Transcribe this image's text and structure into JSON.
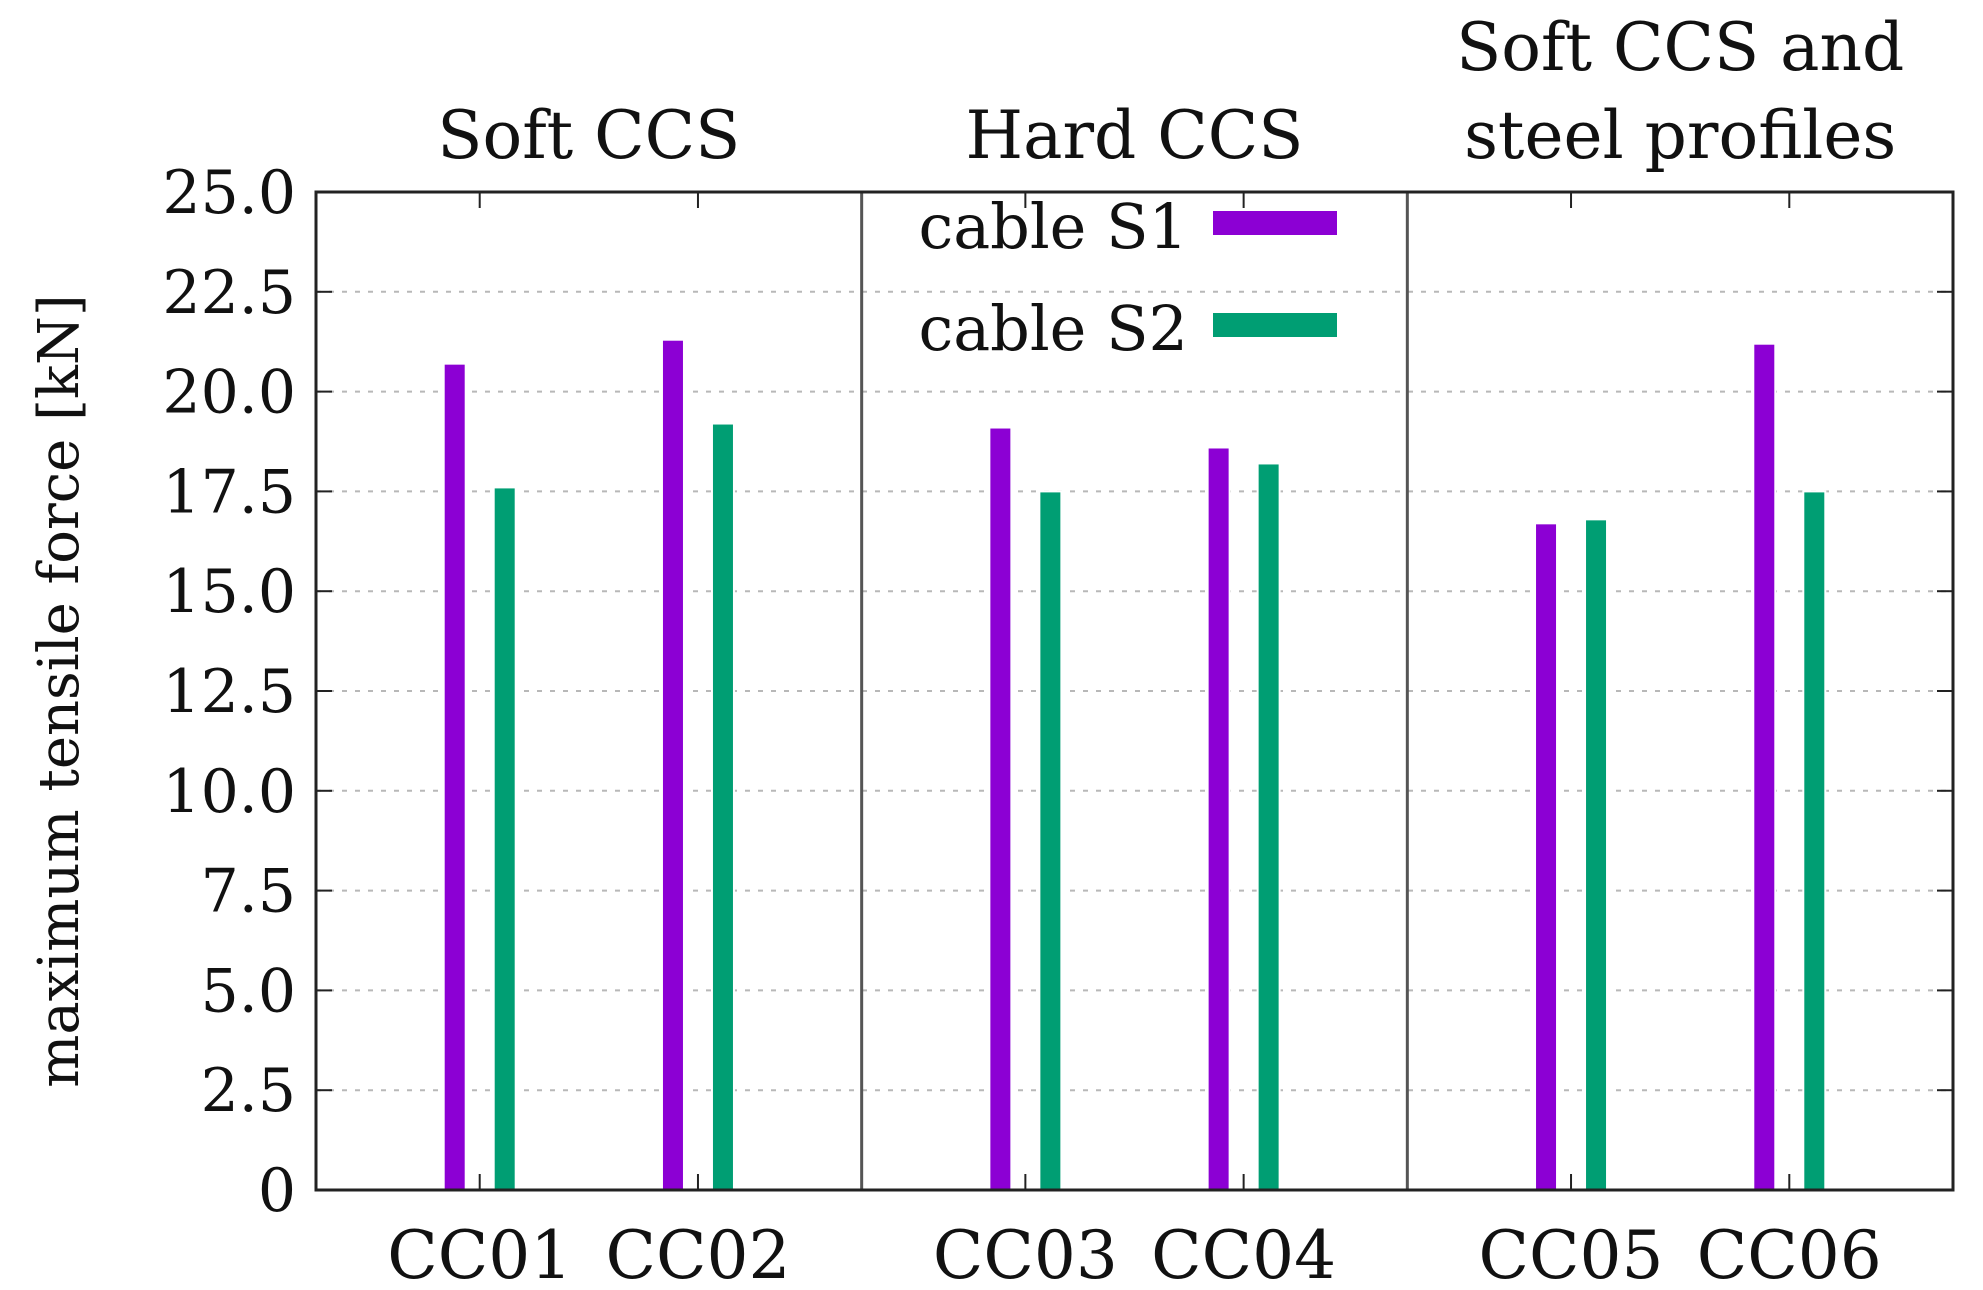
{
  "chart_data": {
    "type": "bar",
    "title": "",
    "xlabel": "",
    "ylabel": "maximum tensile force [kN]",
    "ylim": [
      0,
      25
    ],
    "yticks": [
      0,
      2.5,
      5,
      7.5,
      10,
      12.5,
      15,
      17.5,
      20,
      22.5,
      25
    ],
    "ytick_labels": [
      "0",
      "2.5",
      "5.0",
      "7.5",
      "10.0",
      "12.5",
      "15.0",
      "17.5",
      "20.0",
      "22.5",
      "25.0"
    ],
    "grid": "horizontal dashed",
    "categories": [
      "CC01",
      "CC02",
      "CC03",
      "CC04",
      "CC05",
      "CC06"
    ],
    "groups": [
      {
        "title_lines": [
          "Soft CCS"
        ],
        "categories": [
          "CC01",
          "CC02"
        ]
      },
      {
        "title_lines": [
          "Hard CCS"
        ],
        "categories": [
          "CC03",
          "CC04"
        ]
      },
      {
        "title_lines": [
          "Soft CCS and",
          "steel profiles"
        ],
        "categories": [
          "CC05",
          "CC06"
        ]
      }
    ],
    "series": [
      {
        "name": "cable S1",
        "color": "#8c00d4",
        "values": [
          20.7,
          21.3,
          19.1,
          18.6,
          16.7,
          21.2
        ]
      },
      {
        "name": "cable S2",
        "color": "#009e73",
        "values": [
          17.6,
          19.2,
          17.5,
          18.2,
          16.8,
          17.5
        ]
      }
    ],
    "legend": {
      "position": "top-center"
    }
  }
}
